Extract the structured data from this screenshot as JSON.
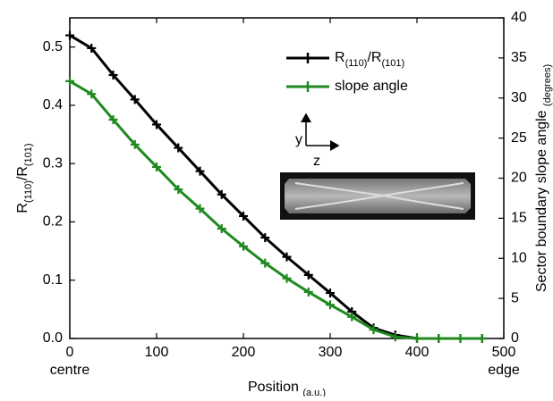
{
  "chart_data": {
    "type": "line",
    "xlabel": "Position (a.u.)",
    "ylabel": "R(110)/R(101)",
    "y2label": "Sector boundary slope angle (degrees)",
    "x_annotations": [
      {
        "value": 0,
        "label": "centre"
      },
      {
        "value": 500,
        "label": "edge"
      }
    ],
    "xlim": [
      0,
      500
    ],
    "xticks": [
      0,
      100,
      200,
      300,
      400,
      500
    ],
    "ylim": [
      0,
      0.55
    ],
    "yticks": [
      {
        "value": 0,
        "label": "0.0"
      },
      0.1,
      0.2,
      0.3,
      0.4,
      0.5
    ],
    "y2lim": [
      0,
      40
    ],
    "y2ticks": [
      0,
      5,
      10,
      15,
      20,
      25,
      30,
      35,
      40
    ],
    "x": [
      0,
      25,
      50,
      75,
      100,
      125,
      150,
      175,
      200,
      225,
      250,
      275,
      300,
      325,
      350,
      375,
      400,
      425,
      450,
      475
    ],
    "series": [
      {
        "name": "R(110)/R(101)",
        "color": "#000000",
        "axis": "y",
        "values": [
          0.52,
          0.498,
          0.452,
          0.41,
          0.367,
          0.327,
          0.287,
          0.247,
          0.21,
          0.173,
          0.14,
          0.109,
          0.078,
          0.046,
          0.018,
          0.006,
          0,
          0,
          0,
          0
        ]
      },
      {
        "name": "slope angle",
        "color": "#1f8a1f",
        "axis": "y2",
        "values": [
          32.1,
          30.5,
          27.3,
          24.2,
          21.4,
          18.6,
          16.2,
          13.7,
          11.5,
          9.4,
          7.5,
          5.8,
          4.2,
          2.7,
          1.1,
          0.2,
          0,
          0,
          0,
          0
        ]
      }
    ],
    "inset": {
      "y_axis": "y",
      "z_axis": "z"
    }
  }
}
